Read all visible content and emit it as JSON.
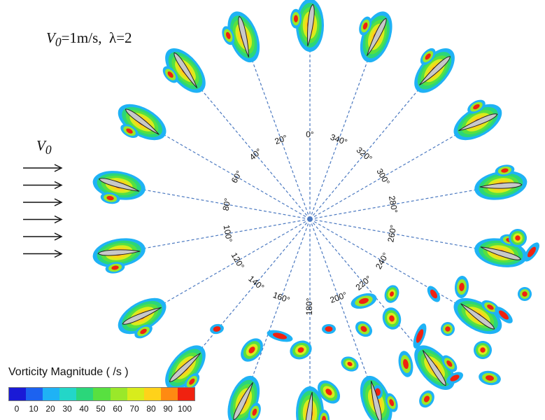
{
  "title": {
    "v_symbol": "V",
    "v_sub": "0",
    "eq_text": "=1m/s,",
    "lambda_text": "λ=2"
  },
  "inflow_label": {
    "symbol": "V",
    "sub": "0"
  },
  "inflow_arrow_count": 6,
  "angle_labels": [
    "0°",
    "20°",
    "40°",
    "60°",
    "80°",
    "100°",
    "120°",
    "140°",
    "160°",
    "180°",
    "200°",
    "220°",
    "240°",
    "260°",
    "280°",
    "300°",
    "320°",
    "340°"
  ],
  "legend": {
    "title": "Vorticity Magnitude ( /s )",
    "ticks": [
      "0",
      "10",
      "20",
      "30",
      "40",
      "50",
      "60",
      "70",
      "80",
      "90",
      "100"
    ],
    "colors": [
      "#1a1ad6",
      "#1c62f0",
      "#1fb2f5",
      "#23d6c8",
      "#2bd67a",
      "#58e040",
      "#9ae82a",
      "#d8ec1c",
      "#ffd21a",
      "#ff8a12",
      "#f02210"
    ]
  }
}
